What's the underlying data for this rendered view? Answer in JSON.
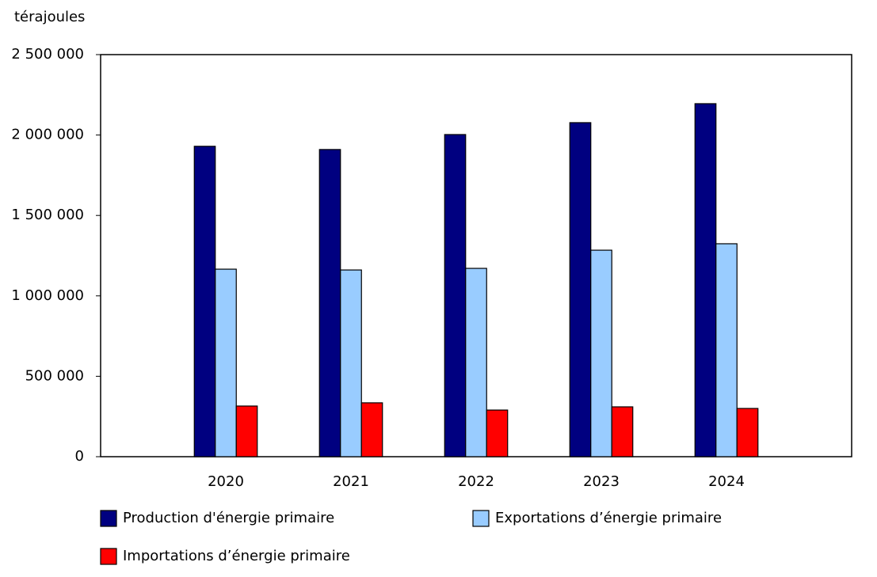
{
  "chart_data": {
    "type": "bar",
    "y_label": "térajoules",
    "categories": [
      "2020",
      "2021",
      "2022",
      "2023",
      "2024"
    ],
    "series": [
      {
        "name": "Production d'énergie primaire",
        "color": "#000080",
        "values": [
          1930000,
          1910000,
          2003000,
          2077000,
          2195000
        ]
      },
      {
        "name": "Exportations d’énergie primaire",
        "color": "#99ccff",
        "values": [
          1166000,
          1161000,
          1171000,
          1284000,
          1324000
        ]
      },
      {
        "name": "Importations d’énergie primaire",
        "color": "#ff0000",
        "values": [
          315000,
          335000,
          290000,
          310000,
          300000
        ]
      }
    ],
    "ylim": [
      0,
      2500000
    ],
    "yticks": [
      0,
      {
        "value": 500000,
        "label": "500 000"
      },
      {
        "value": 1000000,
        "label": "1 000 000"
      },
      {
        "value": 1500000,
        "label": "1 500 000"
      },
      {
        "value": 2000000,
        "label": "2 000 000"
      },
      {
        "value": 2500000,
        "label": "2 500 000"
      }
    ],
    "grid": false
  }
}
